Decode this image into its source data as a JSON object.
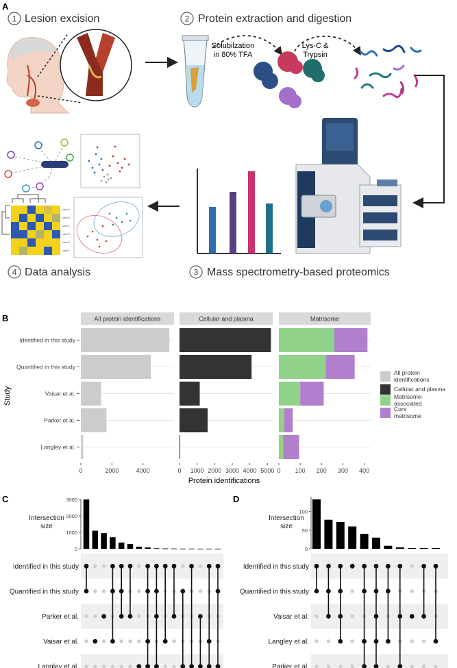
{
  "panel_letters": {
    "a": "A",
    "b": "B",
    "c": "C",
    "d": "D"
  },
  "panel_a": {
    "steps": [
      {
        "num": "1",
        "label": "Lesion excision"
      },
      {
        "num": "2",
        "label": "Protein extraction and digestion"
      },
      {
        "num": "3",
        "label": "Mass spectrometry-based proteomics"
      },
      {
        "num": "4",
        "label": "Data analysis"
      }
    ],
    "solubilization": [
      "Solubilzation",
      "in 80% TFA"
    ],
    "enzymes": [
      "Lys-C &",
      "Trypsin"
    ],
    "heatmap_labels": [
      "Label A",
      "Label B",
      "Label C",
      "Label D",
      "Label E",
      "Label F"
    ]
  },
  "chart_data": [
    {
      "type": "bar",
      "orientation": "horizontal",
      "facets": [
        "All protein identifications",
        "Cellular and plasma",
        "Matrisome"
      ],
      "categories": [
        "Identified in this study",
        "Quantified in this study",
        "Vaisar et al.",
        "Parker et al.",
        "Langley et al."
      ],
      "ylabel": "Study",
      "xlabel": "Protein identifications",
      "xticks": [
        [
          "0",
          "2000",
          "4000"
        ],
        [
          "0",
          "1000",
          "2000",
          "3000",
          "4000",
          "5000"
        ],
        [
          "0",
          "100",
          "200",
          "300",
          "400"
        ]
      ],
      "series": [
        {
          "name": "All protein identifications",
          "color": "#cccccc",
          "facet": 0,
          "values": [
            5700,
            4500,
            1300,
            1650,
            150
          ]
        },
        {
          "name": "Cellular and plasma",
          "color": "#333333",
          "facet": 1,
          "values": [
            5200,
            4100,
            1150,
            1600,
            40
          ]
        },
        {
          "name": "Matrisome-associated",
          "color": "#91d28a",
          "facet": 2,
          "values": [
            260,
            220,
            100,
            25,
            20
          ]
        },
        {
          "name": "Core matrisome",
          "color": "#b17fcb",
          "facet": 2,
          "values": [
            155,
            135,
            110,
            40,
            75
          ]
        }
      ],
      "legend": [
        "All protein identifications",
        "Cellular and plasma",
        "Matrisome-associated",
        "Core matrisome"
      ]
    },
    {
      "type": "upset",
      "sets": [
        "Identified in this study",
        "Quantified in this study",
        "Parker et al.",
        "Vaisar et al.",
        "Langley et al."
      ],
      "ylabel": "Intersection size",
      "yticks": [
        "0",
        "1000",
        "2000",
        "3000"
      ],
      "ymax": 3000,
      "intersection_sizes": [
        3000,
        1100,
        950,
        700,
        380,
        290,
        130,
        80,
        30,
        20,
        15,
        10,
        10,
        5,
        5,
        5
      ],
      "intersections": [
        [
          0,
          1
        ],
        [
          3
        ],
        [
          2
        ],
        [
          0,
          1,
          3
        ],
        [
          0,
          1,
          2
        ],
        [
          0,
          2
        ],
        [
          4
        ],
        [
          0,
          1,
          3,
          4
        ],
        [
          0,
          1,
          2,
          4
        ],
        [
          0,
          3
        ],
        [
          0,
          2
        ],
        [
          1,
          4
        ],
        [
          0,
          4
        ],
        [
          2,
          4
        ],
        [
          0,
          3,
          4
        ],
        [
          0,
          1,
          4
        ]
      ]
    },
    {
      "type": "upset",
      "sets": [
        "Identified in this study",
        "Quantified in this study",
        "Vaisar et al.",
        "Langley et al.",
        "Parker et al."
      ],
      "ylabel": "Intersection size",
      "yticks": [
        "0",
        "50",
        "100"
      ],
      "ymax": 140,
      "intersection_sizes": [
        133,
        78,
        72,
        60,
        40,
        30,
        8,
        4,
        2,
        2,
        2
      ],
      "intersections": [
        [
          0,
          1
        ],
        [
          0,
          1,
          2
        ],
        [
          0,
          1,
          2,
          3
        ],
        [
          0
        ],
        [
          0,
          1,
          3,
          4
        ],
        [
          0,
          1,
          2,
          3,
          4
        ],
        [
          0,
          1,
          3
        ],
        [
          0,
          2,
          4
        ],
        [
          2
        ],
        [
          0,
          2
        ],
        [
          0,
          3
        ]
      ]
    }
  ]
}
